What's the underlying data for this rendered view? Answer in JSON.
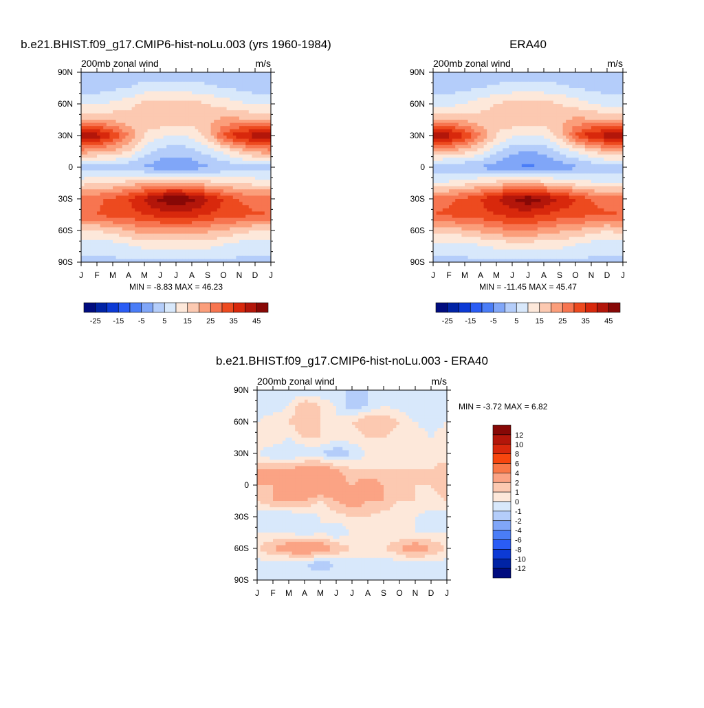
{
  "chart_data": [
    {
      "type": "heatmap",
      "title": "b.e21.BHIST.f09_g17.CMIP6-hist-noLu.003 (yrs 1960-1984)",
      "left_label": "200mb zonal wind",
      "right_label": "m/s",
      "x_ticks": [
        "J",
        "F",
        "M",
        "A",
        "M",
        "J",
        "J",
        "A",
        "S",
        "O",
        "N",
        "D",
        "J"
      ],
      "y_ticks": [
        "90N",
        "60N",
        "30N",
        "0",
        "30S",
        "60S",
        "90S"
      ],
      "min_max_text": "MIN =  -8.83 MAX =  46.23",
      "colorbar_labels": [
        "-25",
        "-15",
        "-5",
        "5",
        "15",
        "25",
        "35",
        "45"
      ],
      "colorbar_colors": [
        "#000c7f",
        "#0023a5",
        "#0c3ad5",
        "#2a5cf5",
        "#4a7df7",
        "#80a6f8",
        "#b4cdfa",
        "#d8e8fb",
        "#fde8da",
        "#fcc9b1",
        "#fb9e7b",
        "#f77550",
        "#ed4a1f",
        "#d8280c",
        "#b3160a",
        "#870806"
      ],
      "lat": [
        -90,
        -75,
        -60,
        -45,
        -30,
        -15,
        0,
        15,
        30,
        45,
        60,
        75,
        90
      ],
      "values": [
        [
          -1,
          -1,
          -1,
          -1,
          -1,
          -1,
          -1,
          -1,
          -1,
          -1,
          -1,
          -1,
          -1
        ],
        [
          2,
          2,
          2,
          4,
          6,
          6,
          6,
          6,
          6,
          4,
          2,
          2,
          2
        ],
        [
          10,
          10,
          12,
          15,
          18,
          18,
          18,
          18,
          16,
          15,
          12,
          10,
          10
        ],
        [
          25,
          25,
          28,
          28,
          30,
          32,
          33,
          32,
          30,
          28,
          27,
          26,
          25
        ],
        [
          22,
          24,
          26,
          30,
          36,
          42,
          46,
          42,
          36,
          30,
          25,
          22,
          22
        ],
        [
          8,
          10,
          10,
          12,
          14,
          16,
          16,
          14,
          12,
          10,
          10,
          8,
          8
        ],
        [
          -3,
          -4,
          -3,
          -4,
          -6,
          -8,
          -8,
          -8,
          -6,
          -4,
          -3,
          -2,
          -3
        ],
        [
          18,
          16,
          14,
          10,
          2,
          -2,
          -3,
          -2,
          2,
          6,
          12,
          16,
          18
        ],
        [
          40,
          38,
          30,
          20,
          10,
          6,
          5,
          6,
          12,
          26,
          34,
          38,
          40
        ],
        [
          15,
          15,
          14,
          12,
          12,
          14,
          14,
          12,
          14,
          16,
          16,
          15,
          15
        ],
        [
          4,
          4,
          6,
          8,
          12,
          12,
          12,
          12,
          10,
          8,
          6,
          4,
          4
        ],
        [
          -2,
          -2,
          -1,
          0,
          2,
          2,
          2,
          2,
          1,
          0,
          -1,
          -2,
          -2
        ],
        [
          -3,
          -3,
          -3,
          -3,
          -3,
          -3,
          -3,
          -3,
          -3,
          -3,
          -3,
          -3,
          -3
        ]
      ]
    },
    {
      "type": "heatmap",
      "title": "ERA40",
      "left_label": "200mb zonal wind",
      "right_label": "m/s",
      "x_ticks": [
        "J",
        "F",
        "M",
        "A",
        "M",
        "J",
        "J",
        "A",
        "S",
        "O",
        "N",
        "D",
        "J"
      ],
      "y_ticks": [
        "90N",
        "60N",
        "30N",
        "0",
        "30S",
        "60S",
        "90S"
      ],
      "min_max_text": "MIN = -11.45 MAX =  45.47",
      "colorbar_labels": [
        "-25",
        "-15",
        "-5",
        "5",
        "15",
        "25",
        "35",
        "45"
      ],
      "colorbar_colors": [
        "#000c7f",
        "#0023a5",
        "#0c3ad5",
        "#2a5cf5",
        "#4a7df7",
        "#80a6f8",
        "#b4cdfa",
        "#d8e8fb",
        "#fde8da",
        "#fcc9b1",
        "#fb9e7b",
        "#f77550",
        "#ed4a1f",
        "#d8280c",
        "#b3160a",
        "#870806"
      ],
      "lat": [
        -90,
        -75,
        -60,
        -45,
        -30,
        -15,
        0,
        15,
        30,
        45,
        60,
        75,
        90
      ],
      "values": [
        [
          -1,
          -1,
          -1,
          -1,
          -1,
          -1,
          -1,
          -1,
          -1,
          -1,
          -1,
          -1,
          -1
        ],
        [
          2,
          2,
          2,
          4,
          6,
          6,
          6,
          6,
          6,
          4,
          2,
          2,
          2
        ],
        [
          12,
          12,
          14,
          16,
          18,
          20,
          20,
          18,
          16,
          15,
          12,
          10,
          12
        ],
        [
          25,
          26,
          28,
          28,
          30,
          32,
          32,
          30,
          28,
          27,
          26,
          26,
          25
        ],
        [
          22,
          24,
          26,
          30,
          35,
          40,
          44,
          40,
          35,
          30,
          25,
          22,
          22
        ],
        [
          5,
          6,
          8,
          10,
          12,
          14,
          14,
          12,
          10,
          8,
          6,
          5,
          5
        ],
        [
          -4,
          -5,
          -5,
          -6,
          -8,
          -10,
          -11,
          -10,
          -8,
          -6,
          -4,
          -3,
          -4
        ],
        [
          16,
          14,
          12,
          8,
          1,
          -4,
          -5,
          -4,
          1,
          5,
          10,
          14,
          16
        ],
        [
          40,
          38,
          30,
          20,
          10,
          6,
          5,
          6,
          12,
          26,
          34,
          38,
          40
        ],
        [
          15,
          15,
          14,
          12,
          12,
          14,
          14,
          12,
          14,
          16,
          16,
          15,
          15
        ],
        [
          3,
          3,
          5,
          8,
          10,
          12,
          12,
          12,
          10,
          8,
          5,
          3,
          3
        ],
        [
          -2,
          -2,
          -1,
          0,
          1,
          2,
          2,
          2,
          1,
          0,
          -1,
          -2,
          -2
        ],
        [
          -3,
          -3,
          -3,
          -3,
          -3,
          -3,
          -3,
          -3,
          -3,
          -3,
          -3,
          -3,
          -3
        ]
      ]
    },
    {
      "type": "heatmap",
      "title": "b.e21.BHIST.f09_g17.CMIP6-hist-noLu.003 - ERA40",
      "left_label": "200mb zonal wind",
      "right_label": "m/s",
      "x_ticks": [
        "J",
        "F",
        "M",
        "A",
        "M",
        "J",
        "J",
        "A",
        "S",
        "O",
        "N",
        "D",
        "J"
      ],
      "y_ticks": [
        "90N",
        "60N",
        "30N",
        "0",
        "30S",
        "60S",
        "90S"
      ],
      "min_max_text": "MIN =  -3.72 MAX =   6.82",
      "colorbar_labels": [
        "12",
        "10",
        "8",
        "6",
        "4",
        "2",
        "1",
        "0",
        "-1",
        "-2",
        "-4",
        "-6",
        "-8",
        "-10",
        "-12"
      ],
      "colorbar_colors": [
        "#870806",
        "#b3160a",
        "#d8280c",
        "#f7460e",
        "#f97848",
        "#fba384",
        "#fcc9b1",
        "#fde8da",
        "#d8e8fb",
        "#b4cdfa",
        "#80a6f8",
        "#4a7df7",
        "#2a5cf5",
        "#0c3ad5",
        "#0023a5",
        "#000c7f"
      ],
      "lat": [
        -90,
        -75,
        -60,
        -45,
        -30,
        -15,
        0,
        15,
        30,
        45,
        60,
        75,
        90
      ],
      "values": [
        [
          0,
          0,
          0,
          0,
          0,
          0,
          0,
          0,
          0,
          0,
          0,
          0,
          0
        ],
        [
          -0.5,
          -0.5,
          -1,
          -1,
          -2,
          -1,
          -1,
          -1,
          -1,
          -0.5,
          -0.5,
          -0.5,
          -0.5
        ],
        [
          1,
          2,
          3,
          4,
          3,
          2,
          1,
          1,
          1,
          2,
          3,
          2,
          1
        ],
        [
          0,
          0,
          0,
          -1,
          0,
          -1,
          0,
          1,
          0,
          0,
          0,
          0,
          0
        ],
        [
          -0.5,
          -1,
          -1,
          -0.5,
          0,
          0.5,
          1,
          1,
          0.5,
          0,
          0,
          -0.5,
          -0.5
        ],
        [
          1,
          2,
          2,
          2,
          1,
          2,
          3,
          2,
          2,
          1,
          1,
          0.5,
          1
        ],
        [
          2,
          2,
          3,
          3,
          4,
          3,
          2,
          3,
          2,
          1,
          1,
          1,
          2
        ],
        [
          2,
          2,
          2,
          3,
          3,
          2,
          1,
          1,
          1,
          1,
          1,
          1,
          2
        ],
        [
          0,
          -1,
          -1,
          -1,
          -1,
          -2,
          -1,
          0,
          0,
          0,
          0,
          0,
          0
        ],
        [
          1,
          1,
          0,
          1,
          1,
          0.5,
          0.5,
          1,
          1,
          0.5,
          1,
          0,
          1
        ],
        [
          0,
          1,
          1,
          2,
          1,
          0,
          1,
          2,
          2,
          1,
          0,
          -1,
          0
        ],
        [
          -1,
          -1,
          0,
          2,
          1,
          0,
          -2,
          -1,
          0,
          -0.5,
          -1,
          -0.5,
          -1
        ],
        [
          -1,
          -1,
          -1,
          -1,
          -1,
          -1,
          -1,
          -1,
          -1,
          -1,
          -1,
          -1,
          -1
        ]
      ]
    }
  ]
}
